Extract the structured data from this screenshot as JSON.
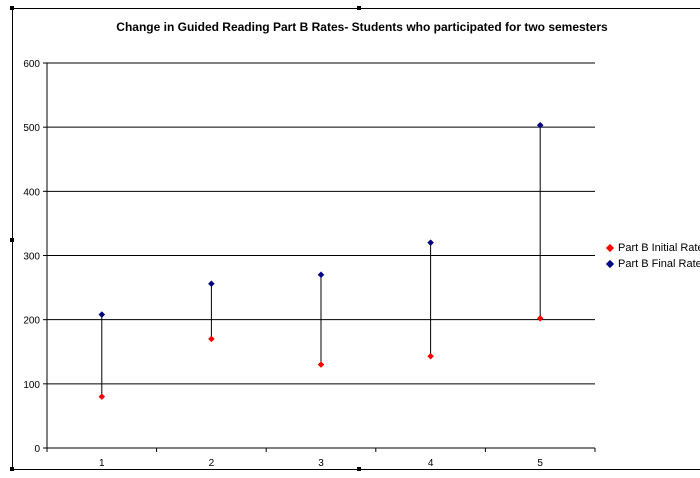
{
  "chart_data": {
    "type": "scatter",
    "title": "Change in Guided Reading Part B Rates- Students who participated for two semesters",
    "xlabel": "",
    "ylabel": "",
    "x": [
      1,
      2,
      3,
      4,
      5
    ],
    "x_tick_labels": [
      "1",
      "2",
      "3",
      "4",
      "5"
    ],
    "ylim": [
      0,
      600
    ],
    "y_ticks": [
      0,
      100,
      200,
      300,
      400,
      500,
      600
    ],
    "y_tick_labels": [
      "0",
      "100",
      "200",
      "300",
      "400",
      "500",
      "600"
    ],
    "grid": "horizontal",
    "legend_position": "right",
    "connect_series_with_vertical_lines": true,
    "series": [
      {
        "name": "Part B Initial Rates",
        "color": "#ff0000",
        "marker": "diamond",
        "values": [
          80,
          170,
          130,
          143,
          202
        ]
      },
      {
        "name": "Part B Final Rates",
        "color": "#000080",
        "marker": "diamond",
        "values": [
          208,
          256,
          270,
          320,
          503
        ]
      }
    ]
  }
}
